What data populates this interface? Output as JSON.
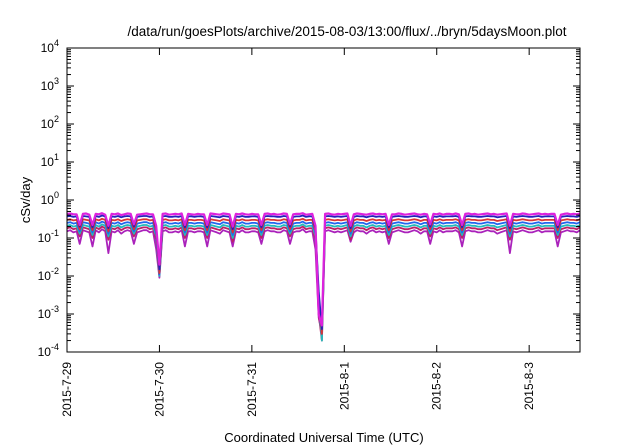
{
  "chart_data": {
    "type": "line",
    "title": "/data/run/goesPlots/archive/2015-08-03/13:00/flux/../bryn/5daysMoon.plot",
    "xlabel": "Coordinated Universal Time (UTC)",
    "ylabel": "cSv/day",
    "yscale": "log",
    "ylim_exp": [
      -4,
      4
    ],
    "y_ticks": [
      {
        "base": "10",
        "exp": "4"
      },
      {
        "base": "10",
        "exp": "3"
      },
      {
        "base": "10",
        "exp": "2"
      },
      {
        "base": "10",
        "exp": "1"
      },
      {
        "base": "10",
        "exp": "0"
      },
      {
        "base": "10",
        "exp": "-1"
      },
      {
        "base": "10",
        "exp": "-2"
      },
      {
        "base": "10",
        "exp": "-3"
      },
      {
        "base": "10",
        "exp": "-4"
      }
    ],
    "x_ticks": [
      "2015-7-29",
      "2015-7-30",
      "2015-7-31",
      "2015-8-1",
      "2015-8-2",
      "2015-8-3"
    ],
    "xlim_days": [
      0,
      5.55
    ],
    "grid": false,
    "legend": "none",
    "series_colors": [
      "#dd22dd",
      "#2222bb",
      "#dd3333",
      "#2266ee",
      "#22bbbb",
      "#bb2266",
      "#aa22bb"
    ],
    "series": [
      {
        "values": [
          0.43,
          0.44,
          0.42,
          0.42,
          0.22,
          0.43,
          0.44,
          0.41,
          0.22,
          0.43,
          0.42,
          0.45,
          0.41,
          0.21,
          0.43,
          0.42,
          0.44,
          0.4,
          0.42,
          0.44,
          0.43,
          0.23,
          0.41,
          0.42,
          0.43,
          0.44,
          0.42,
          0.42,
          0.21,
          0.02,
          0.43,
          0.44,
          0.41,
          0.42,
          0.43,
          0.42,
          0.44,
          0.22,
          0.43,
          0.42,
          0.41,
          0.43,
          0.42,
          0.42,
          0.22,
          0.44,
          0.43,
          0.42,
          0.41,
          0.44,
          0.43,
          0.42,
          0.2,
          0.43,
          0.42,
          0.44,
          0.42,
          0.41,
          0.43,
          0.42,
          0.42,
          0.22,
          0.43,
          0.44,
          0.42,
          0.43,
          0.41,
          0.42,
          0.44,
          0.43,
          0.23,
          0.42,
          0.43,
          0.43,
          0.45,
          0.41,
          0.42,
          0.43,
          0.21,
          0.001,
          0.0005,
          0.43,
          0.44,
          0.42,
          0.41,
          0.43,
          0.42,
          0.43,
          0.44,
          0.21,
          0.42,
          0.44,
          0.43,
          0.42,
          0.41,
          0.43,
          0.44,
          0.42,
          0.43,
          0.42,
          0.43,
          0.22,
          0.42,
          0.42,
          0.44,
          0.43,
          0.41,
          0.42,
          0.43,
          0.44,
          0.42,
          0.41,
          0.43,
          0.42,
          0.23,
          0.43,
          0.42,
          0.44,
          0.41,
          0.43,
          0.43,
          0.42,
          0.44,
          0.42,
          0.22,
          0.43,
          0.44,
          0.42,
          0.43,
          0.41,
          0.42,
          0.43,
          0.44,
          0.42,
          0.43,
          0.41,
          0.42,
          0.43,
          0.44,
          0.21,
          0.43,
          0.42,
          0.42,
          0.44,
          0.43,
          0.41,
          0.42,
          0.43,
          0.44,
          0.42,
          0.43,
          0.42,
          0.43,
          0.43,
          0.22,
          0.41,
          0.43,
          0.44,
          0.42,
          0.43,
          0.42,
          0.44
        ]
      },
      {
        "values": [
          0.37,
          0.38,
          0.36,
          0.37,
          0.2,
          0.38,
          0.37,
          0.36,
          0.19,
          0.38,
          0.36,
          0.39,
          0.37,
          0.18,
          0.37,
          0.36,
          0.38,
          0.35,
          0.37,
          0.38,
          0.37,
          0.2,
          0.36,
          0.37,
          0.38,
          0.38,
          0.36,
          0.37,
          0.18,
          0.015,
          0.37,
          0.38,
          0.36,
          0.36,
          0.37,
          0.36,
          0.38,
          0.19,
          0.37,
          0.37,
          0.36,
          0.37,
          0.37,
          0.36,
          0.19,
          0.38,
          0.37,
          0.36,
          0.35,
          0.38,
          0.37,
          0.36,
          0.17,
          0.37,
          0.36,
          0.38,
          0.36,
          0.36,
          0.37,
          0.37,
          0.36,
          0.19,
          0.37,
          0.38,
          0.37,
          0.37,
          0.36,
          0.36,
          0.38,
          0.37,
          0.2,
          0.36,
          0.37,
          0.37,
          0.39,
          0.36,
          0.37,
          0.37,
          0.18,
          0.004,
          0.0004,
          0.37,
          0.38,
          0.37,
          0.36,
          0.37,
          0.36,
          0.37,
          0.38,
          0.18,
          0.36,
          0.38,
          0.37,
          0.37,
          0.35,
          0.37,
          0.38,
          0.36,
          0.37,
          0.36,
          0.37,
          0.19,
          0.36,
          0.37,
          0.38,
          0.37,
          0.36,
          0.36,
          0.37,
          0.38,
          0.37,
          0.35,
          0.37,
          0.37,
          0.2,
          0.37,
          0.36,
          0.38,
          0.36,
          0.37,
          0.37,
          0.37,
          0.38,
          0.36,
          0.19,
          0.37,
          0.38,
          0.37,
          0.37,
          0.36,
          0.36,
          0.37,
          0.38,
          0.37,
          0.37,
          0.35,
          0.36,
          0.37,
          0.38,
          0.18,
          0.37,
          0.36,
          0.37,
          0.38,
          0.37,
          0.36,
          0.36,
          0.37,
          0.38,
          0.36,
          0.37,
          0.37,
          0.37,
          0.37,
          0.19,
          0.36,
          0.37,
          0.38,
          0.37,
          0.37,
          0.36,
          0.38
        ]
      },
      {
        "values": [
          0.3,
          0.31,
          0.29,
          0.3,
          0.17,
          0.31,
          0.3,
          0.29,
          0.16,
          0.31,
          0.29,
          0.32,
          0.3,
          0.15,
          0.3,
          0.29,
          0.31,
          0.28,
          0.3,
          0.31,
          0.3,
          0.17,
          0.29,
          0.3,
          0.31,
          0.31,
          0.29,
          0.3,
          0.15,
          0.012,
          0.3,
          0.31,
          0.29,
          0.29,
          0.3,
          0.29,
          0.31,
          0.16,
          0.3,
          0.3,
          0.29,
          0.3,
          0.3,
          0.29,
          0.16,
          0.31,
          0.3,
          0.29,
          0.28,
          0.31,
          0.3,
          0.29,
          0.14,
          0.3,
          0.29,
          0.31,
          0.29,
          0.29,
          0.3,
          0.3,
          0.29,
          0.16,
          0.3,
          0.31,
          0.3,
          0.3,
          0.29,
          0.29,
          0.31,
          0.3,
          0.17,
          0.29,
          0.3,
          0.3,
          0.32,
          0.29,
          0.3,
          0.3,
          0.15,
          0.003,
          0.0003,
          0.3,
          0.31,
          0.3,
          0.29,
          0.3,
          0.29,
          0.3,
          0.31,
          0.15,
          0.29,
          0.31,
          0.3,
          0.3,
          0.28,
          0.3,
          0.31,
          0.29,
          0.3,
          0.29,
          0.3,
          0.16,
          0.29,
          0.3,
          0.31,
          0.3,
          0.29,
          0.29,
          0.3,
          0.31,
          0.3,
          0.28,
          0.3,
          0.3,
          0.17,
          0.3,
          0.29,
          0.31,
          0.29,
          0.3,
          0.3,
          0.3,
          0.31,
          0.29,
          0.16,
          0.3,
          0.31,
          0.3,
          0.3,
          0.29,
          0.29,
          0.3,
          0.31,
          0.3,
          0.3,
          0.28,
          0.29,
          0.3,
          0.31,
          0.15,
          0.3,
          0.29,
          0.3,
          0.31,
          0.3,
          0.29,
          0.29,
          0.3,
          0.31,
          0.29,
          0.3,
          0.3,
          0.3,
          0.3,
          0.16,
          0.29,
          0.3,
          0.31,
          0.3,
          0.3,
          0.29,
          0.31
        ]
      },
      {
        "values": [
          0.25,
          0.26,
          0.24,
          0.25,
          0.15,
          0.26,
          0.25,
          0.24,
          0.14,
          0.26,
          0.24,
          0.27,
          0.25,
          0.13,
          0.25,
          0.24,
          0.26,
          0.23,
          0.25,
          0.26,
          0.25,
          0.15,
          0.24,
          0.25,
          0.26,
          0.26,
          0.24,
          0.25,
          0.13,
          0.011,
          0.25,
          0.26,
          0.24,
          0.24,
          0.25,
          0.24,
          0.26,
          0.14,
          0.25,
          0.25,
          0.24,
          0.25,
          0.25,
          0.24,
          0.14,
          0.26,
          0.25,
          0.24,
          0.23,
          0.26,
          0.25,
          0.24,
          0.12,
          0.25,
          0.24,
          0.26,
          0.24,
          0.24,
          0.25,
          0.25,
          0.24,
          0.14,
          0.25,
          0.26,
          0.25,
          0.25,
          0.24,
          0.24,
          0.26,
          0.25,
          0.15,
          0.24,
          0.25,
          0.25,
          0.27,
          0.24,
          0.25,
          0.25,
          0.13,
          0.002,
          0.0003,
          0.25,
          0.26,
          0.25,
          0.24,
          0.25,
          0.24,
          0.25,
          0.26,
          0.13,
          0.24,
          0.26,
          0.25,
          0.25,
          0.23,
          0.25,
          0.26,
          0.24,
          0.25,
          0.24,
          0.25,
          0.14,
          0.24,
          0.25,
          0.26,
          0.25,
          0.24,
          0.24,
          0.25,
          0.26,
          0.25,
          0.23,
          0.25,
          0.25,
          0.15,
          0.25,
          0.24,
          0.26,
          0.24,
          0.25,
          0.25,
          0.25,
          0.26,
          0.24,
          0.14,
          0.25,
          0.26,
          0.25,
          0.25,
          0.24,
          0.24,
          0.25,
          0.26,
          0.25,
          0.25,
          0.23,
          0.24,
          0.25,
          0.26,
          0.13,
          0.25,
          0.24,
          0.25,
          0.26,
          0.25,
          0.24,
          0.24,
          0.25,
          0.26,
          0.24,
          0.25,
          0.25,
          0.25,
          0.25,
          0.14,
          0.24,
          0.25,
          0.26,
          0.25,
          0.25,
          0.24,
          0.26
        ]
      },
      {
        "values": [
          0.21,
          0.22,
          0.2,
          0.21,
          0.13,
          0.22,
          0.21,
          0.2,
          0.12,
          0.22,
          0.2,
          0.23,
          0.21,
          0.11,
          0.21,
          0.2,
          0.22,
          0.19,
          0.21,
          0.22,
          0.21,
          0.13,
          0.2,
          0.21,
          0.22,
          0.22,
          0.2,
          0.21,
          0.11,
          0.01,
          0.21,
          0.22,
          0.2,
          0.2,
          0.21,
          0.2,
          0.22,
          0.12,
          0.21,
          0.21,
          0.2,
          0.21,
          0.21,
          0.2,
          0.12,
          0.22,
          0.21,
          0.2,
          0.19,
          0.22,
          0.21,
          0.2,
          0.1,
          0.21,
          0.2,
          0.22,
          0.2,
          0.2,
          0.21,
          0.21,
          0.2,
          0.12,
          0.21,
          0.22,
          0.21,
          0.21,
          0.2,
          0.2,
          0.22,
          0.21,
          0.13,
          0.2,
          0.21,
          0.21,
          0.23,
          0.2,
          0.21,
          0.21,
          0.11,
          0.002,
          0.0002,
          0.21,
          0.22,
          0.21,
          0.2,
          0.21,
          0.2,
          0.21,
          0.22,
          0.11,
          0.2,
          0.22,
          0.21,
          0.21,
          0.19,
          0.21,
          0.22,
          0.2,
          0.21,
          0.2,
          0.21,
          0.12,
          0.2,
          0.21,
          0.22,
          0.21,
          0.2,
          0.2,
          0.21,
          0.22,
          0.21,
          0.19,
          0.21,
          0.21,
          0.13,
          0.21,
          0.2,
          0.22,
          0.2,
          0.21,
          0.21,
          0.21,
          0.22,
          0.2,
          0.12,
          0.21,
          0.22,
          0.21,
          0.21,
          0.2,
          0.2,
          0.21,
          0.22,
          0.21,
          0.21,
          0.19,
          0.2,
          0.21,
          0.22,
          0.11,
          0.21,
          0.2,
          0.21,
          0.22,
          0.21,
          0.2,
          0.2,
          0.21,
          0.22,
          0.2,
          0.21,
          0.21,
          0.21,
          0.21,
          0.12,
          0.2,
          0.21,
          0.22,
          0.21,
          0.21,
          0.2,
          0.22
        ]
      },
      {
        "values": [
          0.18,
          0.19,
          0.17,
          0.18,
          0.11,
          0.19,
          0.18,
          0.17,
          0.1,
          0.19,
          0.17,
          0.2,
          0.18,
          0.09,
          0.18,
          0.17,
          0.19,
          0.16,
          0.18,
          0.19,
          0.18,
          0.11,
          0.17,
          0.18,
          0.19,
          0.19,
          0.17,
          0.18,
          0.09,
          0.01,
          0.18,
          0.19,
          0.17,
          0.17,
          0.18,
          0.17,
          0.19,
          0.1,
          0.18,
          0.18,
          0.17,
          0.18,
          0.18,
          0.17,
          0.1,
          0.19,
          0.18,
          0.17,
          0.16,
          0.19,
          0.18,
          0.17,
          0.08,
          0.18,
          0.17,
          0.19,
          0.17,
          0.17,
          0.18,
          0.18,
          0.17,
          0.1,
          0.18,
          0.19,
          0.18,
          0.18,
          0.17,
          0.17,
          0.19,
          0.18,
          0.11,
          0.17,
          0.18,
          0.18,
          0.2,
          0.17,
          0.18,
          0.18,
          0.09,
          0.001,
          0.0002,
          0.18,
          0.19,
          0.18,
          0.17,
          0.18,
          0.17,
          0.18,
          0.19,
          0.09,
          0.17,
          0.19,
          0.18,
          0.18,
          0.16,
          0.18,
          0.19,
          0.17,
          0.18,
          0.17,
          0.18,
          0.1,
          0.17,
          0.18,
          0.19,
          0.18,
          0.17,
          0.17,
          0.18,
          0.19,
          0.18,
          0.16,
          0.18,
          0.18,
          0.11,
          0.18,
          0.17,
          0.19,
          0.17,
          0.18,
          0.18,
          0.18,
          0.19,
          0.17,
          0.1,
          0.18,
          0.19,
          0.18,
          0.18,
          0.17,
          0.17,
          0.18,
          0.19,
          0.18,
          0.18,
          0.16,
          0.17,
          0.18,
          0.19,
          0.09,
          0.18,
          0.17,
          0.18,
          0.19,
          0.18,
          0.17,
          0.17,
          0.18,
          0.19,
          0.17,
          0.18,
          0.18,
          0.18,
          0.18,
          0.1,
          0.17,
          0.18,
          0.19,
          0.18,
          0.18,
          0.17,
          0.19
        ]
      },
      {
        "values": [
          0.15,
          0.16,
          0.14,
          0.15,
          0.07,
          0.16,
          0.15,
          0.14,
          0.06,
          0.16,
          0.14,
          0.17,
          0.15,
          0.04,
          0.15,
          0.14,
          0.16,
          0.13,
          0.15,
          0.16,
          0.15,
          0.07,
          0.14,
          0.15,
          0.16,
          0.16,
          0.14,
          0.15,
          0.05,
          0.009,
          0.15,
          0.16,
          0.14,
          0.14,
          0.15,
          0.14,
          0.16,
          0.06,
          0.15,
          0.15,
          0.14,
          0.15,
          0.15,
          0.14,
          0.06,
          0.16,
          0.15,
          0.14,
          0.13,
          0.16,
          0.15,
          0.14,
          0.06,
          0.15,
          0.14,
          0.16,
          0.14,
          0.14,
          0.15,
          0.15,
          0.14,
          0.07,
          0.15,
          0.16,
          0.15,
          0.15,
          0.14,
          0.14,
          0.16,
          0.15,
          0.07,
          0.14,
          0.15,
          0.15,
          0.17,
          0.14,
          0.15,
          0.15,
          0.05,
          0.0008,
          0.0003,
          0.15,
          0.16,
          0.15,
          0.14,
          0.15,
          0.14,
          0.15,
          0.16,
          0.08,
          0.14,
          0.16,
          0.15,
          0.15,
          0.13,
          0.15,
          0.16,
          0.14,
          0.15,
          0.14,
          0.15,
          0.07,
          0.14,
          0.15,
          0.16,
          0.15,
          0.14,
          0.14,
          0.15,
          0.16,
          0.15,
          0.13,
          0.15,
          0.15,
          0.07,
          0.15,
          0.14,
          0.16,
          0.14,
          0.15,
          0.15,
          0.15,
          0.16,
          0.14,
          0.06,
          0.15,
          0.16,
          0.15,
          0.15,
          0.14,
          0.14,
          0.15,
          0.16,
          0.15,
          0.15,
          0.13,
          0.14,
          0.15,
          0.16,
          0.04,
          0.15,
          0.14,
          0.15,
          0.16,
          0.15,
          0.14,
          0.14,
          0.15,
          0.16,
          0.14,
          0.15,
          0.15,
          0.15,
          0.15,
          0.06,
          0.14,
          0.15,
          0.16,
          0.15,
          0.15,
          0.14,
          0.16
        ]
      }
    ]
  }
}
